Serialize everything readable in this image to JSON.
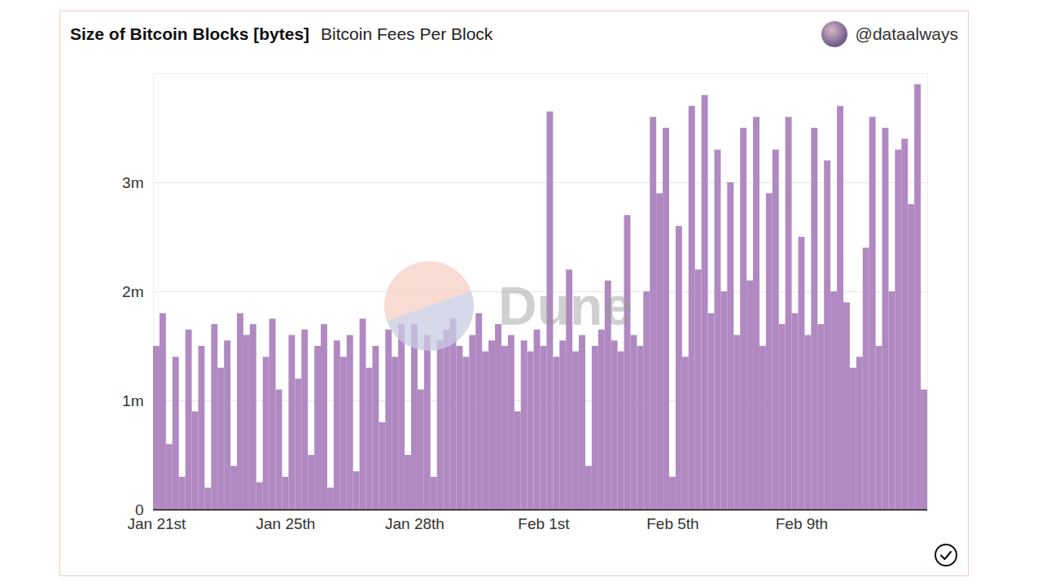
{
  "chart_data": {
    "type": "bar",
    "title": "Size of Bitcoin Blocks [bytes]",
    "subtitle": "Bitcoin Fees Per Block",
    "source": "@dataalways",
    "watermark": "Dune",
    "color": "#b189c2",
    "grid": true,
    "ylim": [
      0,
      4000000
    ],
    "yticks": [
      0,
      {
        "value": 1000000,
        "label": "1m"
      },
      {
        "value": 2000000,
        "label": "2m"
      },
      {
        "value": 3000000,
        "label": "3m"
      }
    ],
    "categories": [
      "Jan 21st",
      null,
      null,
      null,
      null,
      null,
      null,
      null,
      null,
      null,
      null,
      null,
      null,
      null,
      null,
      null,
      null,
      null,
      null,
      null,
      "Jan 25th",
      null,
      null,
      null,
      null,
      null,
      null,
      null,
      null,
      null,
      null,
      null,
      null,
      null,
      null,
      null,
      null,
      null,
      null,
      null,
      "Jan 28th",
      null,
      null,
      null,
      null,
      null,
      null,
      null,
      null,
      null,
      null,
      null,
      null,
      null,
      null,
      null,
      null,
      null,
      null,
      null,
      "Feb 1st",
      null,
      null,
      null,
      null,
      null,
      null,
      null,
      null,
      null,
      null,
      null,
      null,
      null,
      null,
      null,
      null,
      null,
      null,
      null,
      "Feb 5th",
      null,
      null,
      null,
      null,
      null,
      null,
      null,
      null,
      null,
      null,
      null,
      null,
      null,
      null,
      null,
      null,
      null,
      null,
      null,
      "Feb 9th",
      null,
      null,
      null,
      null,
      null,
      null,
      null,
      null,
      null,
      null,
      null,
      null,
      null,
      null,
      null,
      null,
      null,
      null,
      null
    ],
    "values": [
      1500000,
      1800000,
      600000,
      1400000,
      300000,
      1650000,
      900000,
      1500000,
      200000,
      1700000,
      1300000,
      1550000,
      400000,
      1800000,
      1600000,
      1700000,
      250000,
      1400000,
      1750000,
      1100000,
      300000,
      1600000,
      1200000,
      1650000,
      500000,
      1500000,
      1700000,
      200000,
      1550000,
      1400000,
      1600000,
      350000,
      1750000,
      1300000,
      1500000,
      800000,
      1650000,
      1400000,
      1700000,
      500000,
      1700000,
      1100000,
      1600000,
      300000,
      1550000,
      1650000,
      1750000,
      1500000,
      1400000,
      1600000,
      1800000,
      1450000,
      1550000,
      1700000,
      1500000,
      1600000,
      900000,
      1550000,
      1450000,
      1650000,
      1500000,
      3650000,
      1400000,
      1550000,
      2200000,
      1450000,
      1600000,
      400000,
      1500000,
      1650000,
      2100000,
      1550000,
      1450000,
      2700000,
      1600000,
      1500000,
      2000000,
      3600000,
      2900000,
      3500000,
      300000,
      2600000,
      1400000,
      3700000,
      2200000,
      3800000,
      1800000,
      3300000,
      2000000,
      3000000,
      1600000,
      3500000,
      2100000,
      3600000,
      1500000,
      2900000,
      3300000,
      1700000,
      3600000,
      1800000,
      2500000,
      1600000,
      3500000,
      1700000,
      3200000,
      2000000,
      3700000,
      1900000,
      1300000,
      1400000,
      2400000,
      3600000,
      1500000,
      3500000,
      2000000,
      3300000,
      3400000,
      2800000,
      3900000,
      1100000
    ]
  }
}
